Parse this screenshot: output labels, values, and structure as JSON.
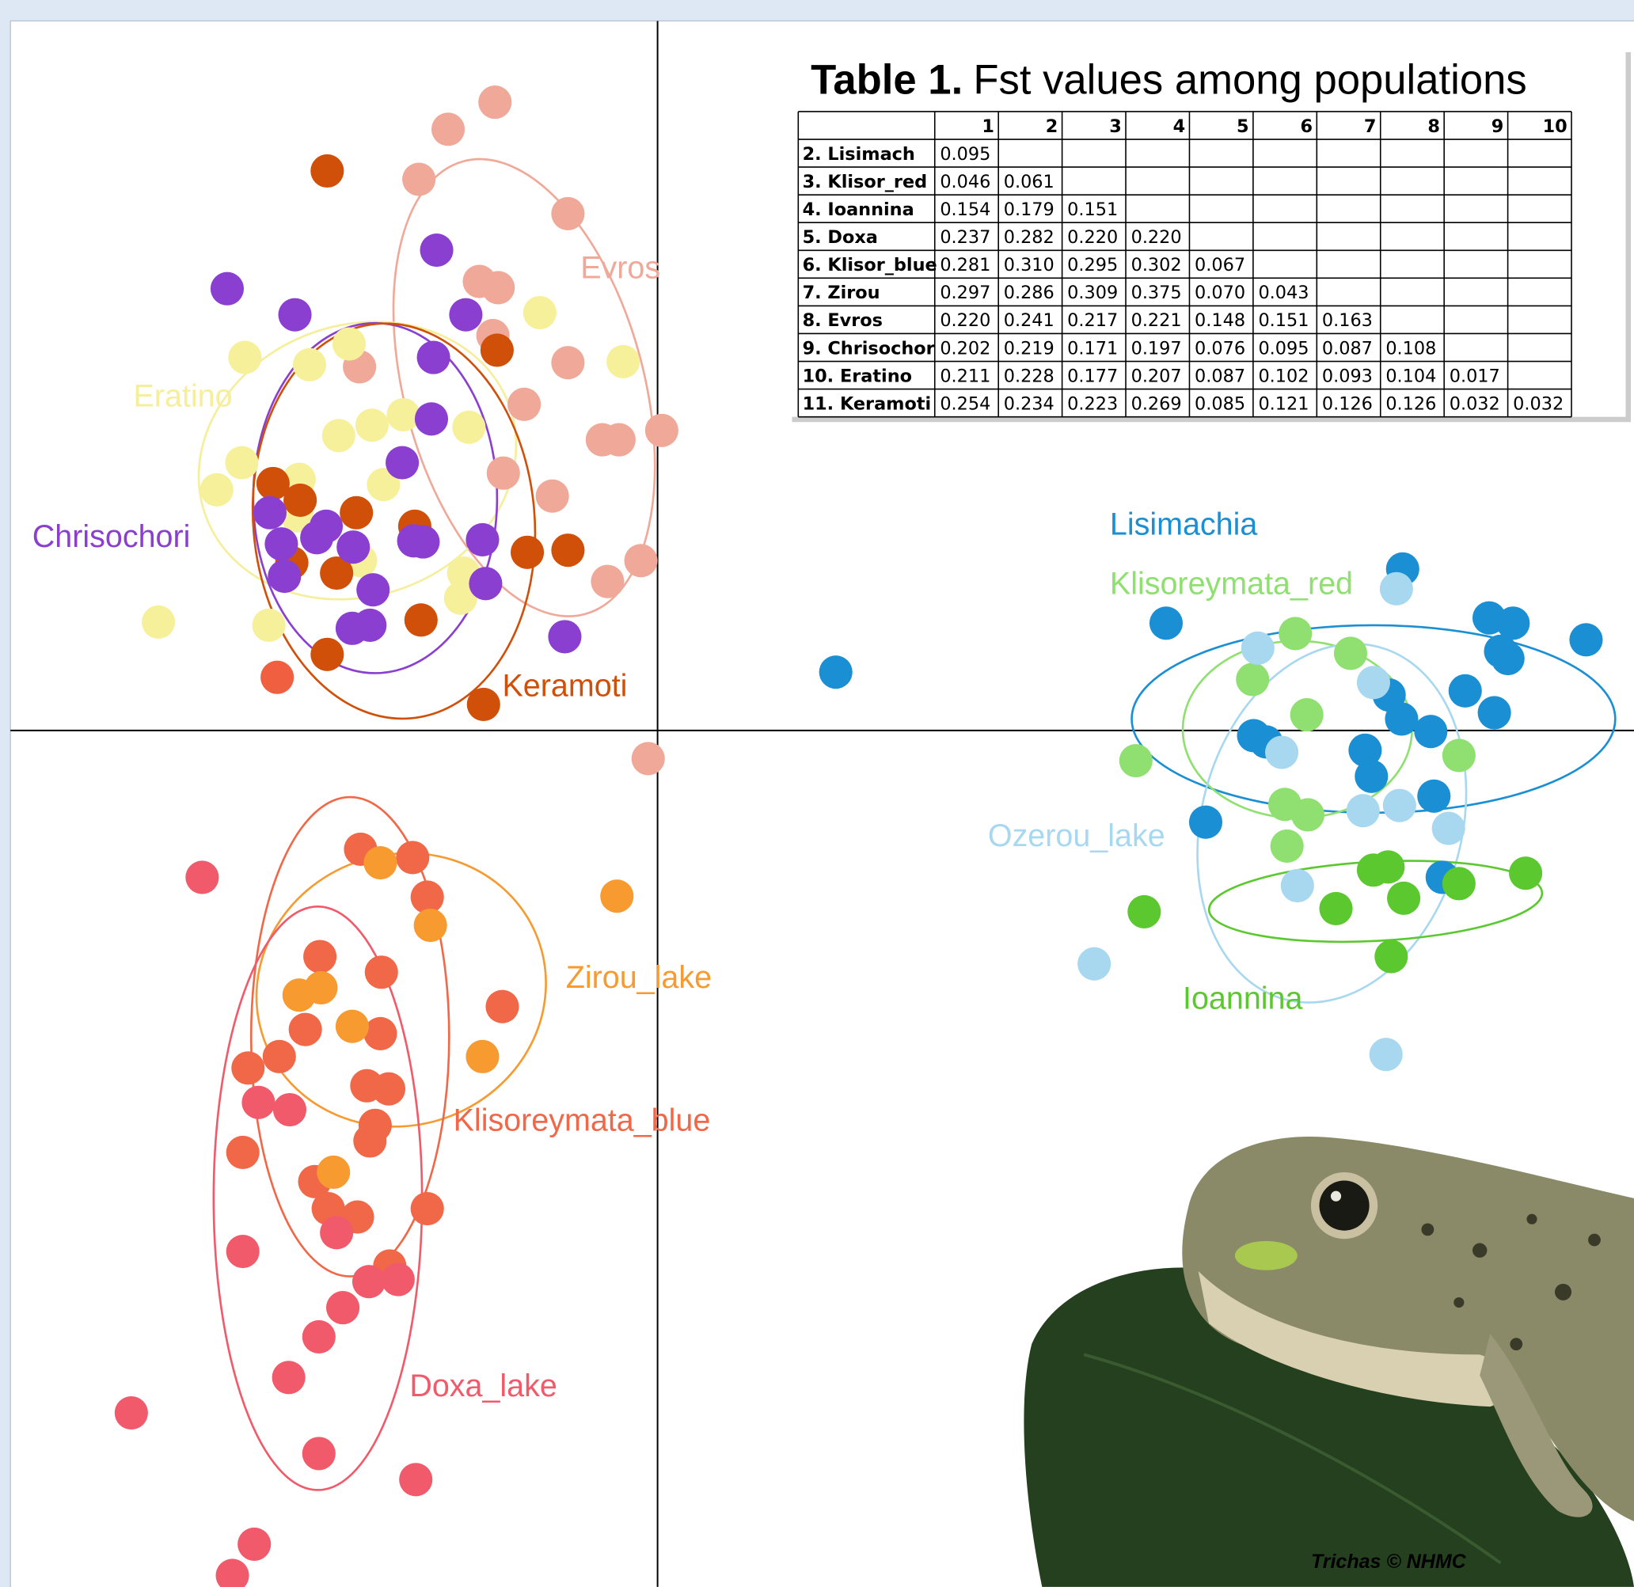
{
  "table": {
    "title_bold": "Table 1.",
    "title": "Fst values among populations",
    "columns": [
      "1",
      "2",
      "3",
      "4",
      "5",
      "6",
      "7",
      "8",
      "9",
      "10"
    ],
    "rows": [
      {
        "label": "2. Lisimach",
        "values": [
          "0.095"
        ]
      },
      {
        "label": "3. Klisor_red",
        "values": [
          "0.046",
          "0.061"
        ]
      },
      {
        "label": "4. Ioannina",
        "values": [
          "0.154",
          "0.179",
          "0.151"
        ]
      },
      {
        "label": "5. Doxa",
        "values": [
          "0.237",
          "0.282",
          "0.220",
          "0.220"
        ]
      },
      {
        "label": "6. Klisor_blue",
        "values": [
          "0.281",
          "0.310",
          "0.295",
          "0.302",
          "0.067"
        ]
      },
      {
        "label": "7. Zirou",
        "values": [
          "0.297",
          "0.286",
          "0.309",
          "0.375",
          "0.070",
          "0.043"
        ]
      },
      {
        "label": "8. Evros",
        "values": [
          "0.220",
          "0.241",
          "0.217",
          "0.221",
          "0.148",
          "0.151",
          "0.163"
        ]
      },
      {
        "label": "9. Chrisochor",
        "values": [
          "0.202",
          "0.219",
          "0.171",
          "0.197",
          "0.076",
          "0.095",
          "0.087",
          "0.108"
        ]
      },
      {
        "label": "10. Eratino",
        "values": [
          "0.211",
          "0.228",
          "0.177",
          "0.207",
          "0.087",
          "0.102",
          "0.093",
          "0.104",
          "0.017"
        ]
      },
      {
        "label": "11. Keramoti",
        "values": [
          "0.254",
          "0.234",
          "0.223",
          "0.269",
          "0.085",
          "0.121",
          "0.126",
          "0.126",
          "0.032",
          "0.032"
        ]
      }
    ]
  },
  "plot": {
    "labels": [
      "Evros",
      "Eratino",
      "Chrisochori",
      "Keramoti",
      "Lisimachia",
      "Klisoreymata_red",
      "Ozerou_lake",
      "Ioannina",
      "Zirou_lake",
      "Klisoreymata_blue",
      "Doxa_lake"
    ]
  },
  "credit": "Trichas © NHMC"
}
